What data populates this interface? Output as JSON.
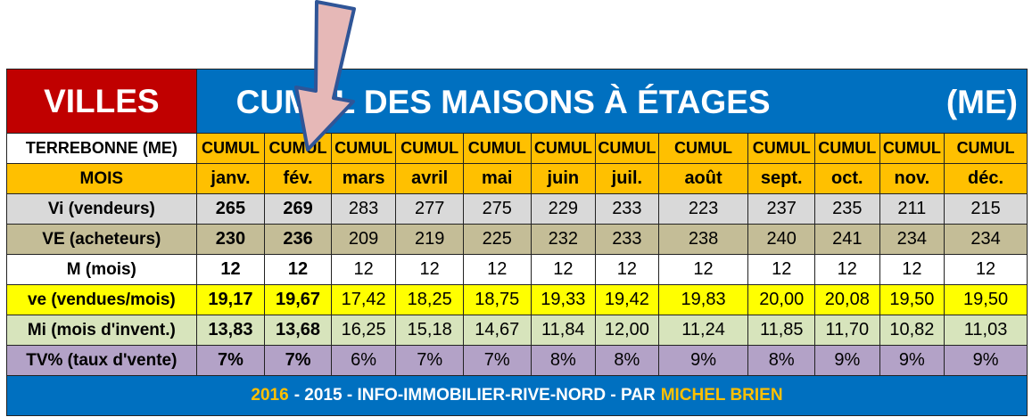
{
  "title": {
    "villes": "VILLES",
    "main": "CUMUL DES MAISONS À ÉTAGES",
    "code": "(ME)"
  },
  "table": {
    "header_row": {
      "label": "TERREBONNE (ME)",
      "cells": [
        "CUMUL",
        "CUMUL",
        "CUMUL",
        "CUMUL",
        "CUMUL",
        "CUMUL",
        "CUMUL",
        "CUMUL",
        "CUMUL",
        "CUMUL",
        "CUMUL",
        "CUMUL"
      ]
    },
    "rows": [
      {
        "label": "MOIS",
        "cells": [
          "janv.",
          "fév.",
          "mars",
          "avril",
          "mai",
          "juin",
          "juil.",
          "août",
          "sept.",
          "oct.",
          "nov.",
          "déc."
        ]
      },
      {
        "label": "Vi (vendeurs)",
        "cells": [
          "265",
          "269",
          "283",
          "277",
          "275",
          "229",
          "233",
          "223",
          "237",
          "235",
          "211",
          "215"
        ]
      },
      {
        "label": "VE (acheteurs)",
        "cells": [
          "230",
          "236",
          "209",
          "219",
          "225",
          "232",
          "233",
          "238",
          "240",
          "241",
          "234",
          "234"
        ]
      },
      {
        "label": "M (mois)",
        "cells": [
          "12",
          "12",
          "12",
          "12",
          "12",
          "12",
          "12",
          "12",
          "12",
          "12",
          "12",
          "12"
        ]
      },
      {
        "label": "ve (vendues/mois)",
        "cells": [
          "19,17",
          "19,67",
          "17,42",
          "18,25",
          "18,75",
          "19,33",
          "19,42",
          "19,83",
          "20,00",
          "20,08",
          "19,50",
          "19,50"
        ]
      },
      {
        "label": "Mi (mois d'invent.)",
        "cells": [
          "13,83",
          "13,68",
          "16,25",
          "15,18",
          "14,67",
          "11,84",
          "12,00",
          "11,24",
          "11,85",
          "11,70",
          "10,82",
          "11,03"
        ]
      },
      {
        "label": "TV% (taux d'vente)",
        "cells": [
          "7%",
          "7%",
          "6%",
          "7%",
          "7%",
          "8%",
          "8%",
          "9%",
          "8%",
          "9%",
          "9%",
          "9%"
        ]
      }
    ]
  },
  "footer": [
    "2016",
    "- 2015 - INFO-IMMOBILIER-RIVE-NORD - PAR",
    "MICHEL BRIEN"
  ]
}
